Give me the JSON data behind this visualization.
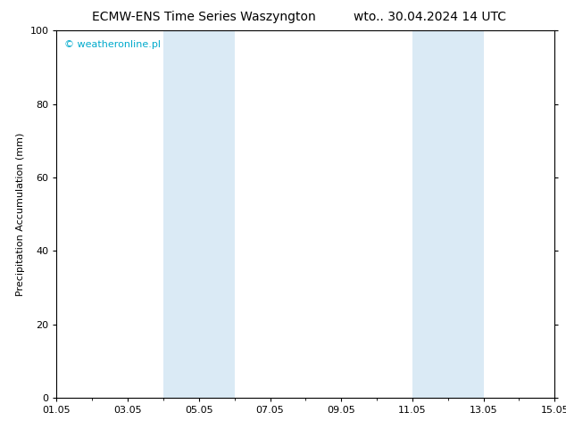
{
  "title_left": "ECMW-ENS Time Series Waszyngton",
  "title_right": "wto.. 30.04.2024 14 UTC",
  "ylabel": "Precipitation Accumulation (mm)",
  "ylim": [
    0,
    100
  ],
  "yticks": [
    0,
    20,
    40,
    60,
    80,
    100
  ],
  "xlim_start": 0,
  "xlim_end": 14,
  "xtick_positions": [
    0,
    2,
    4,
    6,
    8,
    10,
    12,
    14
  ],
  "xtick_labels": [
    "01.05",
    "03.05",
    "05.05",
    "07.05",
    "09.05",
    "11.05",
    "13.05",
    "15.05"
  ],
  "shaded_bands": [
    {
      "xmin": 3.0,
      "xmax": 5.0
    },
    {
      "xmin": 10.0,
      "xmax": 12.0
    }
  ],
  "band_color": "#daeaf5",
  "band_alpha": 1.0,
  "watermark_text": "© weatheronline.pl",
  "watermark_color": "#00aacc",
  "background_color": "#ffffff",
  "plot_bg_color": "#ffffff",
  "title_fontsize": 10,
  "label_fontsize": 8,
  "tick_fontsize": 8,
  "watermark_fontsize": 8
}
